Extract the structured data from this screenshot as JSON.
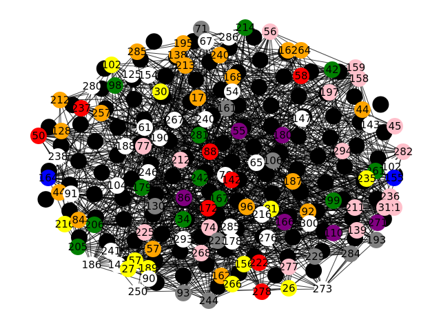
{
  "colors": {
    "background": "#ffffff",
    "edge": "#000000",
    "black": "#000000",
    "gray": "#808080",
    "orange": "#ffa500",
    "yellow": "#ffff00",
    "pink": "#ffc0cb",
    "red": "#ff0000",
    "green": "#008000",
    "blue": "#0000ff",
    "purple": "#800080",
    "white": "#ffffff"
  },
  "graph": {
    "nodes": [
      {
        "label": "71",
        "color": "gray"
      },
      {
        "label": "214",
        "color": "green"
      },
      {
        "label": "56",
        "color": "pink"
      },
      {
        "label": "286",
        "color": "white"
      },
      {
        "label": "67",
        "color": "white"
      },
      {
        "label": "195",
        "color": "orange"
      },
      {
        "label": "285",
        "color": "orange"
      },
      {
        "label": "162",
        "color": "orange"
      },
      {
        "label": "264",
        "color": "orange"
      },
      {
        "label": "138",
        "color": "orange"
      },
      {
        "label": "240",
        "color": "orange"
      },
      {
        "label": "102",
        "color": "yellow"
      },
      {
        "label": "159",
        "color": "pink"
      },
      {
        "label": "158",
        "color": "pink"
      },
      {
        "label": "42",
        "color": "green"
      },
      {
        "label": "125",
        "color": "white"
      },
      {
        "label": "154",
        "color": "white"
      },
      {
        "label": "168",
        "color": "orange"
      },
      {
        "label": "54",
        "color": "white"
      },
      {
        "label": "58",
        "color": "red"
      },
      {
        "label": "213",
        "color": "orange"
      },
      {
        "label": "197",
        "color": "pink"
      },
      {
        "label": "212",
        "color": "orange"
      },
      {
        "label": "30",
        "color": "yellow"
      },
      {
        "label": "280",
        "color": "white"
      },
      {
        "label": "98",
        "color": "green"
      },
      {
        "label": "17",
        "color": "orange"
      },
      {
        "label": "161",
        "color": "gray"
      },
      {
        "label": "44",
        "color": "orange"
      },
      {
        "label": "45",
        "color": "pink"
      },
      {
        "label": "237",
        "color": "red"
      },
      {
        "label": "257",
        "color": "orange"
      },
      {
        "label": "240",
        "color": "white"
      },
      {
        "label": "61",
        "color": "white"
      },
      {
        "label": "147",
        "color": "white"
      },
      {
        "label": "143",
        "color": "white"
      },
      {
        "label": "50",
        "color": "red"
      },
      {
        "label": "128",
        "color": "orange"
      },
      {
        "label": "188",
        "color": "white"
      },
      {
        "label": "267",
        "color": "white"
      },
      {
        "label": "281",
        "color": "green"
      },
      {
        "label": "55",
        "color": "purple"
      },
      {
        "label": "180",
        "color": "purple"
      },
      {
        "label": "238",
        "color": "white"
      },
      {
        "label": "294",
        "color": "pink"
      },
      {
        "label": "282",
        "color": "pink"
      },
      {
        "label": "77",
        "color": "pink"
      },
      {
        "label": "190",
        "color": "white"
      },
      {
        "label": "88",
        "color": "red"
      },
      {
        "label": "212",
        "color": "pink"
      },
      {
        "label": "65",
        "color": "white"
      },
      {
        "label": "106",
        "color": "gray"
      },
      {
        "label": "261",
        "color": "green"
      },
      {
        "label": "102",
        "color": "white"
      },
      {
        "label": "164",
        "color": "blue"
      },
      {
        "label": "104",
        "color": "white"
      },
      {
        "label": "246",
        "color": "white"
      },
      {
        "label": "242",
        "color": "green"
      },
      {
        "label": "76",
        "color": "white"
      },
      {
        "label": "142",
        "color": "red"
      },
      {
        "label": "187",
        "color": "orange"
      },
      {
        "label": "235",
        "color": "yellow"
      },
      {
        "label": "155",
        "color": "blue"
      },
      {
        "label": "44",
        "color": "orange"
      },
      {
        "label": "91",
        "color": "white"
      },
      {
        "label": "179",
        "color": "green"
      },
      {
        "label": "167",
        "color": "green"
      },
      {
        "label": "236",
        "color": "pink"
      },
      {
        "label": "21",
        "color": "pink"
      },
      {
        "label": "130",
        "color": "gray"
      },
      {
        "label": "86",
        "color": "purple"
      },
      {
        "label": "96",
        "color": "orange"
      },
      {
        "label": "81",
        "color": "yellow"
      },
      {
        "label": "92",
        "color": "orange"
      },
      {
        "label": "99",
        "color": "green"
      },
      {
        "label": "211",
        "color": "pink"
      },
      {
        "label": "31",
        "color": "pink"
      },
      {
        "label": "216",
        "color": "yellow"
      },
      {
        "label": "84",
        "color": "orange"
      },
      {
        "label": "206",
        "color": "green"
      },
      {
        "label": "172",
        "color": "red"
      },
      {
        "label": "216",
        "color": "white"
      },
      {
        "label": "34",
        "color": "green"
      },
      {
        "label": "271",
        "color": "purple"
      },
      {
        "label": "74",
        "color": "pink"
      },
      {
        "label": "285",
        "color": "white"
      },
      {
        "label": "225",
        "color": "pink"
      },
      {
        "label": "139",
        "color": "pink"
      },
      {
        "label": "193",
        "color": "gray"
      },
      {
        "label": "205",
        "color": "green"
      },
      {
        "label": "293",
        "color": "white"
      },
      {
        "label": "223",
        "color": "gray"
      },
      {
        "label": "276",
        "color": "white"
      },
      {
        "label": "178",
        "color": "white"
      },
      {
        "label": "241",
        "color": "white"
      },
      {
        "label": "268",
        "color": "pink"
      },
      {
        "label": "284",
        "color": "gray"
      },
      {
        "label": "186",
        "color": "white"
      },
      {
        "label": "57",
        "color": "yellow"
      },
      {
        "label": "189",
        "color": "yellow"
      },
      {
        "label": "156",
        "color": "yellow"
      },
      {
        "label": "277",
        "color": "pink"
      },
      {
        "label": "229",
        "color": "gray"
      },
      {
        "label": "141",
        "color": "white"
      },
      {
        "label": "90",
        "color": "white"
      },
      {
        "label": "162",
        "color": "orange"
      },
      {
        "label": "266",
        "color": "yellow"
      },
      {
        "label": "278",
        "color": "red"
      },
      {
        "label": "26",
        "color": "yellow"
      },
      {
        "label": "250",
        "color": "white"
      },
      {
        "label": "93",
        "color": "gray"
      },
      {
        "label": "244",
        "color": "gray"
      },
      {
        "label": "273",
        "color": "white"
      },
      {
        "label": "222",
        "color": "red"
      },
      {
        "label": "110",
        "color": "purple"
      },
      {
        "label": "57",
        "color": "orange"
      },
      {
        "label": "166",
        "color": "purple"
      },
      {
        "label": "300",
        "color": "white"
      },
      {
        "label": "27",
        "color": "yellow"
      }
    ]
  }
}
